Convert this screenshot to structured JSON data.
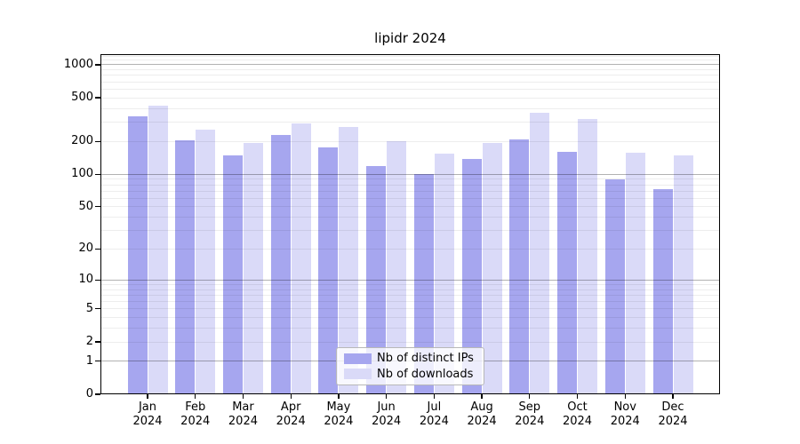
{
  "chart_data": {
    "type": "bar",
    "title": "lipidr 2024",
    "categories": [
      "Jan 2024",
      "Feb 2024",
      "Mar 2024",
      "Apr 2024",
      "May 2024",
      "Jun 2024",
      "Jul 2024",
      "Aug 2024",
      "Sep 2024",
      "Oct 2024",
      "Nov 2024",
      "Dec 2024"
    ],
    "series": [
      {
        "name": "Nb of distinct IPs",
        "color": "#a6a6ef",
        "values": [
          340,
          204,
          150,
          228,
          176,
          119,
          100,
          138,
          208,
          160,
          89,
          73
        ]
      },
      {
        "name": "Nb of downloads",
        "color": "#dadaf8",
        "values": [
          420,
          255,
          193,
          290,
          270,
          200,
          155,
          193,
          365,
          320,
          157,
          149
        ]
      }
    ],
    "xlabel": "",
    "ylabel": "",
    "yscale": "log1p",
    "yticks": [
      0,
      1,
      2,
      5,
      10,
      20,
      50,
      100,
      200,
      500,
      1000
    ],
    "major_grid_values": [
      1,
      10,
      100,
      1000
    ],
    "ylim": [
      0,
      1250
    ],
    "grid": "on",
    "legend_position": "lower center",
    "colors": {
      "major_grid": "rgba(0,0,0,0.30)",
      "minor_grid": "rgba(0,0,0,0.07)",
      "axis": "#000000",
      "background": "#ffffff"
    }
  }
}
